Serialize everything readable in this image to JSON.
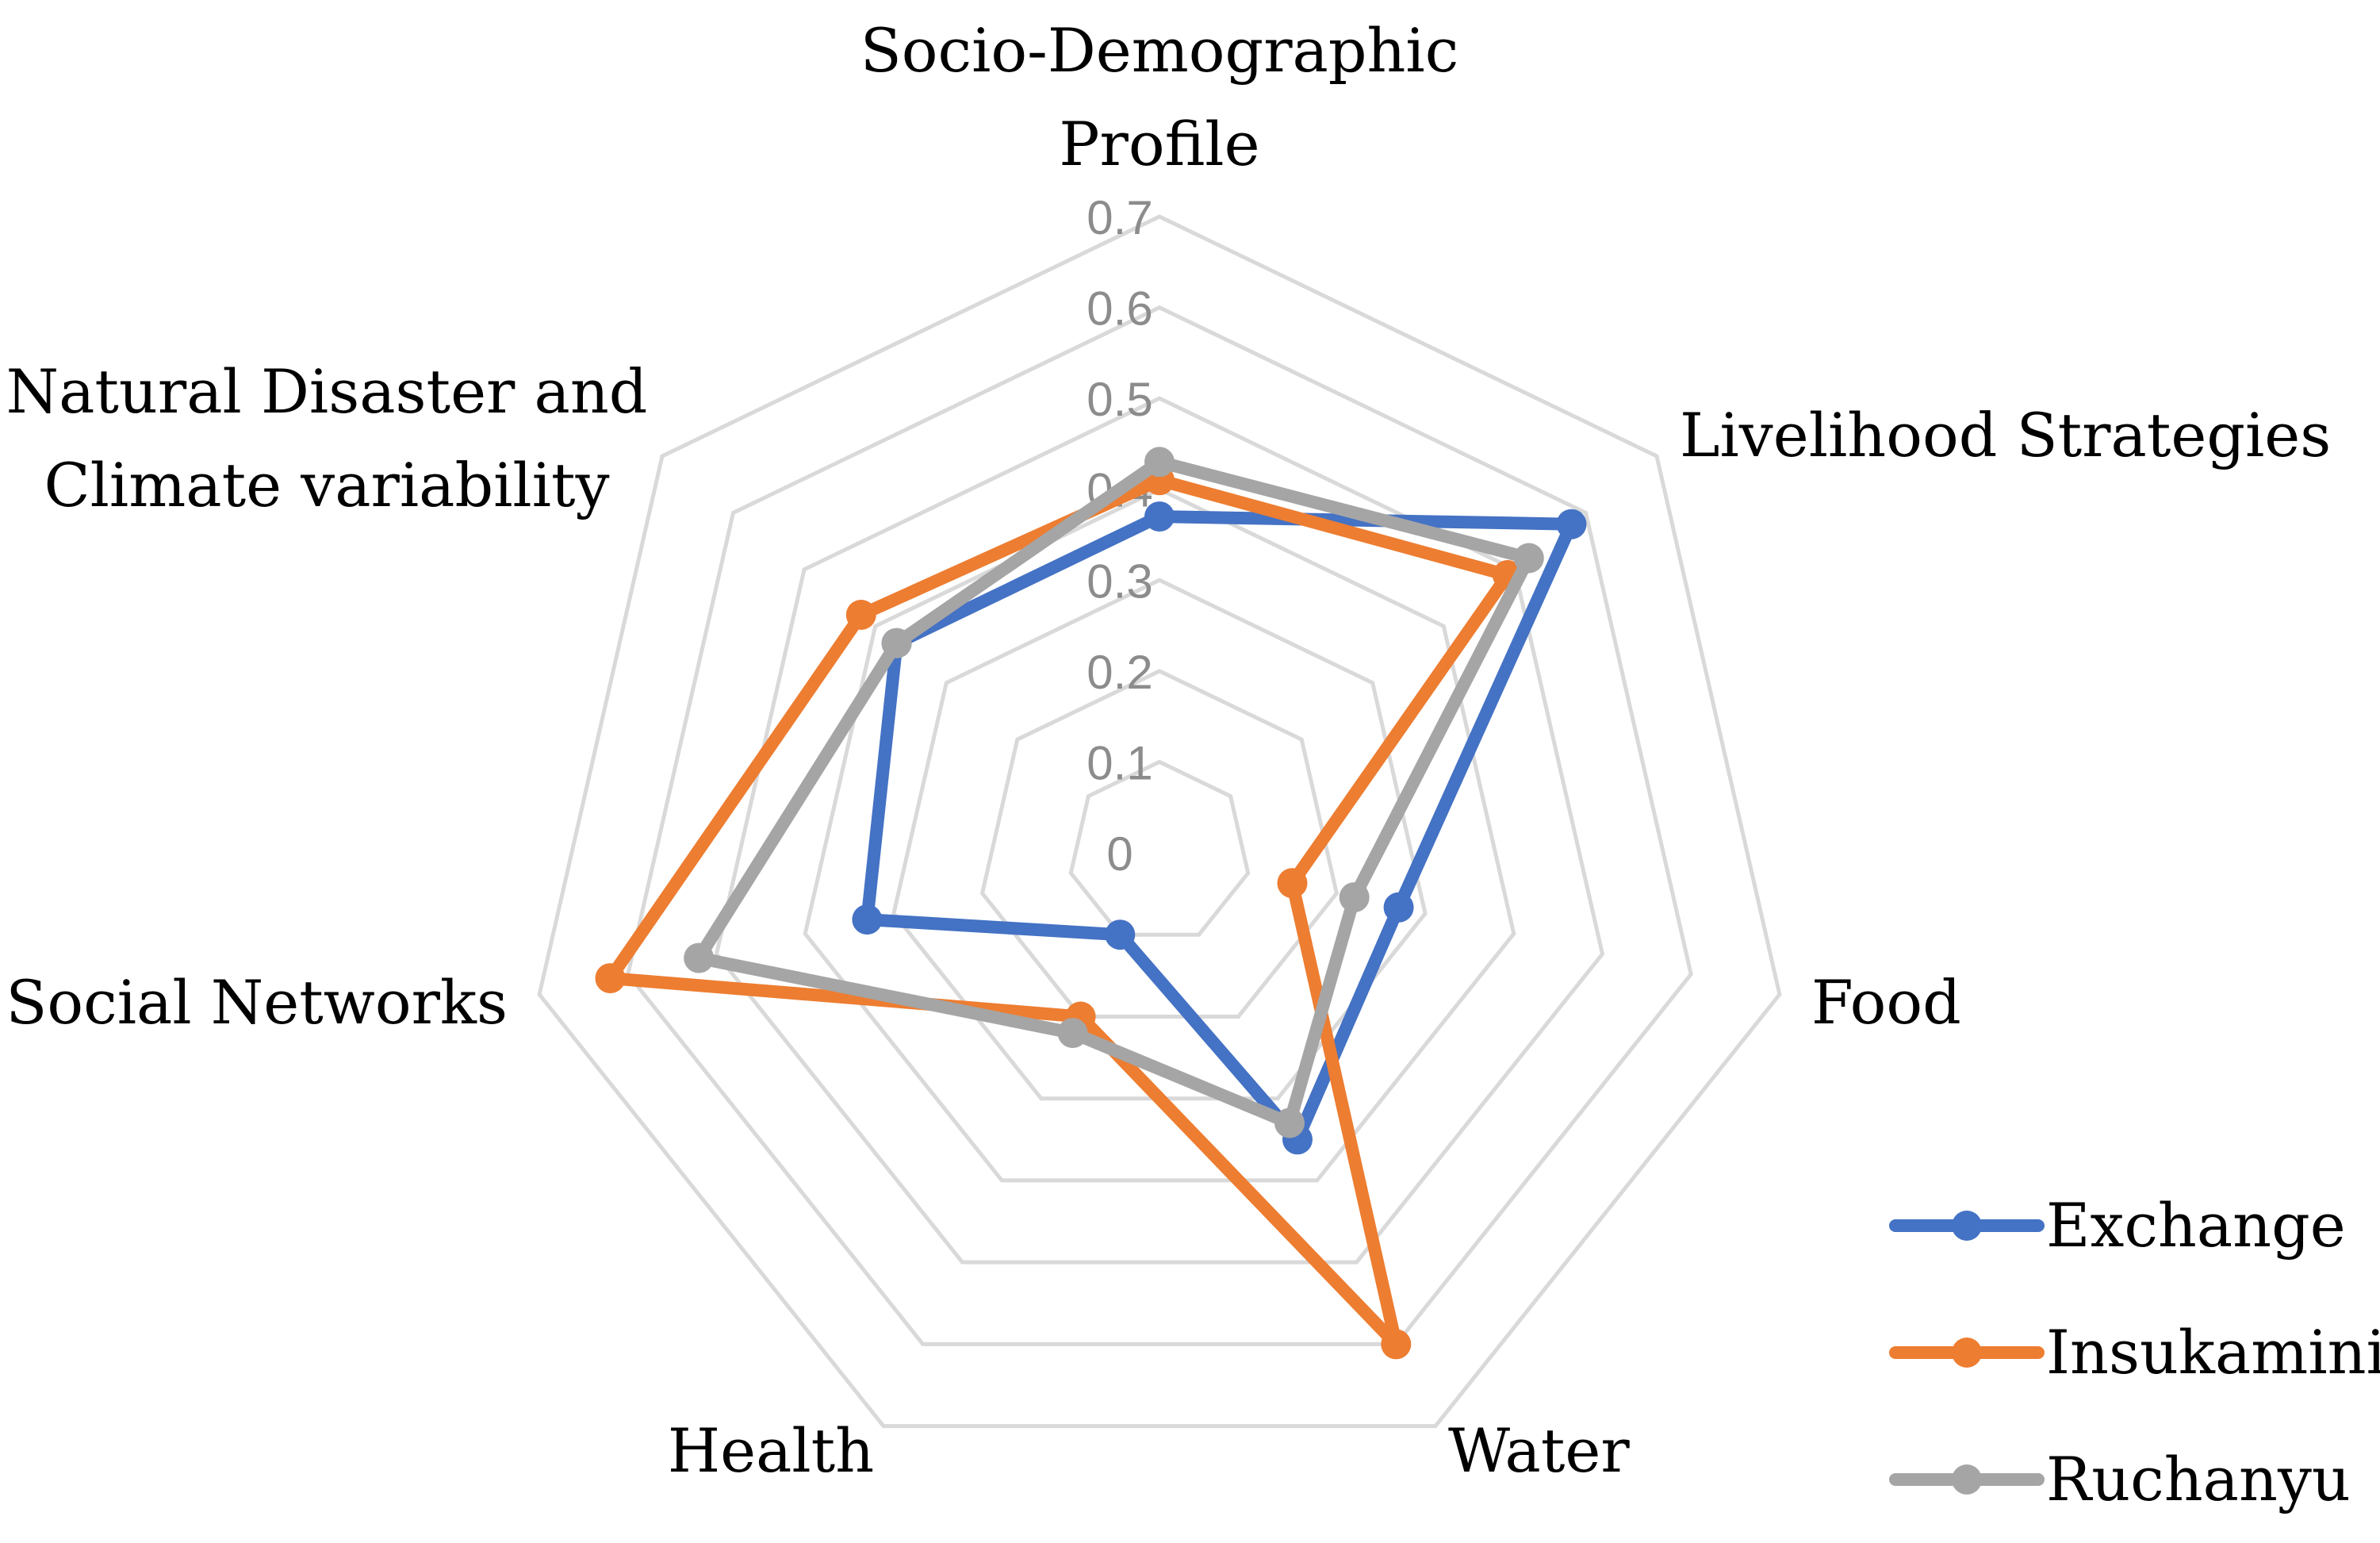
{
  "chart_data": {
    "type": "radar",
    "title": "",
    "axes": [
      "Socio-Demographic Profile",
      "Livelihood Strategies",
      "Food",
      "Water",
      "Health",
      "Social Networks",
      "Natural Disaster and Climate variability"
    ],
    "axis_label_lines": [
      [
        "Socio-Demographic",
        "Profile"
      ],
      [
        "Livelihood Strategies"
      ],
      [
        "Food"
      ],
      [
        "Water"
      ],
      [
        "Health"
      ],
      [
        "Social Networks"
      ],
      [
        "Natural Disaster and",
        "Climate variability"
      ]
    ],
    "range": [
      0,
      0.7
    ],
    "ticks": [
      0,
      0.1,
      0.2,
      0.3,
      0.4,
      0.5,
      0.6,
      0.7
    ],
    "tick_labels": [
      "0",
      "0.1",
      "0.2",
      "0.3",
      "0.4",
      "0.5",
      "0.6",
      "0.7"
    ],
    "series": [
      {
        "name": "Exchange",
        "color": "#4472c4",
        "values": [
          0.37,
          0.58,
          0.27,
          0.35,
          0.1,
          0.33,
          0.37
        ]
      },
      {
        "name": "Insukamini",
        "color": "#ed7d31",
        "values": [
          0.41,
          0.49,
          0.15,
          0.6,
          0.2,
          0.62,
          0.42
        ]
      },
      {
        "name": "Ruchanyu",
        "color": "#a5a5a5",
        "values": [
          0.43,
          0.52,
          0.22,
          0.33,
          0.22,
          0.52,
          0.37
        ]
      }
    ],
    "legend_position": "bottom-right",
    "grid": true
  }
}
